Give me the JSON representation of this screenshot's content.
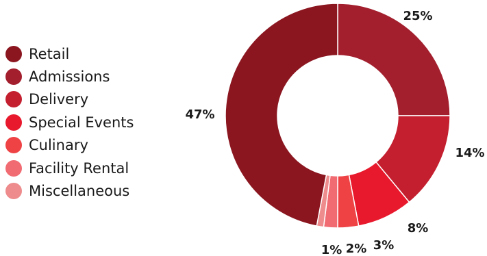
{
  "chart_data": {
    "type": "pie",
    "title": "",
    "legend_placement": "left",
    "categories": [
      "Retail",
      "Admissions",
      "Delivery",
      "Special Events",
      "Culinary",
      "Facility Rental",
      "Miscellaneous"
    ],
    "values": [
      47,
      25,
      14,
      8,
      3,
      2,
      1
    ],
    "value_labels": [
      "47%",
      "25%",
      "14%",
      "8%",
      "3%",
      "2%",
      "1%"
    ],
    "colors": [
      "#8b1620",
      "#a31f2e",
      "#c41f2f",
      "#e8192c",
      "#ee4245",
      "#f16b72",
      "#ee8b8c"
    ]
  }
}
